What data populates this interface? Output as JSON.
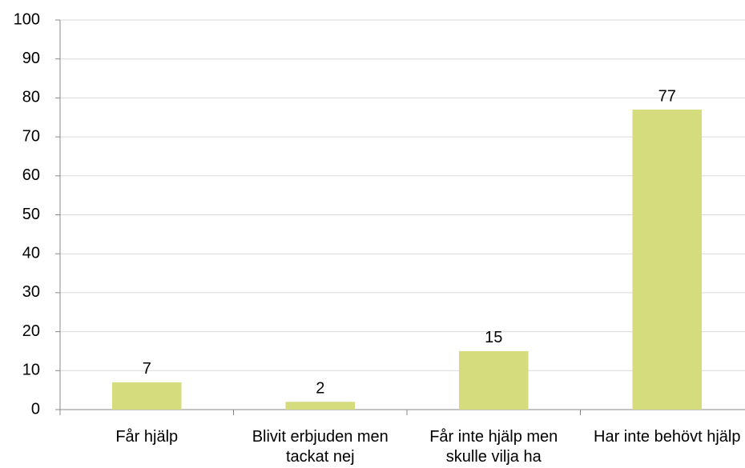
{
  "chart_data": {
    "type": "bar",
    "categories": [
      "Får hjälp",
      "Blivit erbjuden men tackat nej",
      "Får inte hjälp men skulle vilja ha",
      "Har inte behövt hjälp"
    ],
    "values": [
      7,
      2,
      15,
      77
    ],
    "color": "#d4dc7e",
    "ylim": [
      0,
      100
    ],
    "yticks": [
      0,
      10,
      20,
      30,
      40,
      50,
      60,
      70,
      80,
      90,
      100
    ],
    "grid": true
  }
}
